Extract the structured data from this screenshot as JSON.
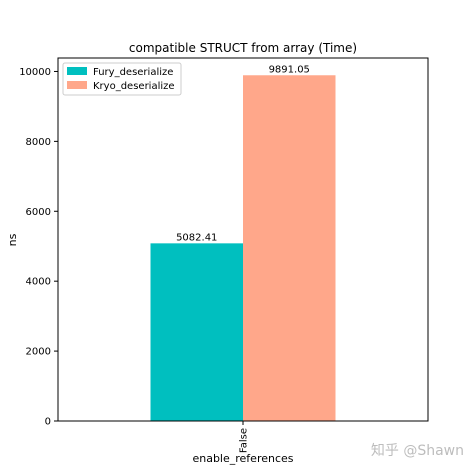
{
  "chart_data": {
    "type": "bar",
    "title": "compatible STRUCT from array (Time)",
    "xlabel": "enable_references",
    "ylabel": "ns",
    "categories": [
      "False"
    ],
    "series": [
      {
        "name": "Fury_deserialize",
        "values": [
          5082.41
        ],
        "value_labels": [
          "5082.41"
        ],
        "color": "#00bfbf"
      },
      {
        "name": "Kryo_deserialize",
        "values": [
          9891.05
        ],
        "value_labels": [
          "9891.05"
        ],
        "color": "#ffa78a"
      }
    ],
    "ylim": [
      0,
      10385
    ],
    "yticks": [
      0,
      2000,
      4000,
      6000,
      8000,
      10000
    ],
    "legend": "top-left",
    "grid": false
  },
  "watermark": "知乎 @Shawn"
}
